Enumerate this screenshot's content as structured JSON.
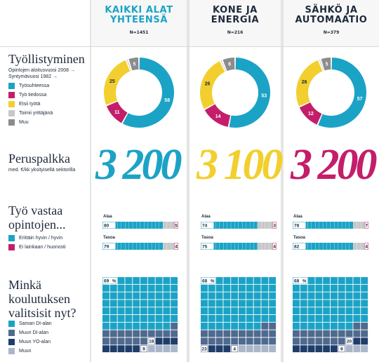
{
  "colors": {
    "blue": "#1ba3c6",
    "magenta": "#c41e6a",
    "yellow": "#f2cf2e",
    "gray": "#8c8c8c",
    "lightgray": "#c8c8c8",
    "slate": "#4f6a8e",
    "navy": "#1f3d6b",
    "lightslate": "#aab7c9"
  },
  "columns": [
    {
      "title": "KAIKKI ALAT\nYHTEENSÄ",
      "n": "N=1451",
      "title_color": "#1ba3c6"
    },
    {
      "title": "KONE JA\nENERGIA",
      "n": "N=216",
      "title_color": "#1e2a3a"
    },
    {
      "title": "SÄHKÖ JA\nAUTOMAATIO",
      "n": "N=379",
      "title_color": "#1e2a3a"
    }
  ],
  "sections": {
    "employment": {
      "title": "Työllistyminen",
      "subtitle": "Opintojen aloitusvuosi 2008 →\nSyntymävuosi 1982 →",
      "legend": [
        {
          "label": "Työsuhteessa",
          "color": "#1ba3c6"
        },
        {
          "label": "Työ tiedossa",
          "color": "#c41e6a"
        },
        {
          "label": "Etsii työtä",
          "color": "#f2cf2e"
        },
        {
          "label": "Toimii yrittäjänä",
          "color": "#c8c8c8"
        },
        {
          "label": "Muu",
          "color": "#8c8c8c"
        }
      ]
    },
    "salary": {
      "title": "Peruspalkka",
      "subtitle": "med. €/kk yksityisellä sektorilla",
      "values": [
        "3 200",
        "3 100",
        "3 200"
      ],
      "colors": [
        "#1ba3c6",
        "#f2cf2e",
        "#c41e6a"
      ]
    },
    "match": {
      "title": "Työ vastaa\nopintojen...",
      "legend": [
        {
          "label": "Erittäin hyvin / hyvin",
          "color": "#1ba3c6"
        },
        {
          "label": "Ei lainkaan / huonosti",
          "color": "#c41e6a"
        }
      ],
      "row_labels": [
        "Alaa",
        "Tasoa"
      ]
    },
    "choice": {
      "title": "Minkä\nkoulutuksen\nvalitsisit nyt?",
      "legend": [
        {
          "label": "Saman DI-alan",
          "color": "#1ba3c6"
        },
        {
          "label": "Muun DI-alan",
          "color": "#4f6a8e"
        },
        {
          "label": "Muun YO-alan",
          "color": "#1f3d6b"
        },
        {
          "label": "Muun",
          "color": "#aab7c9"
        }
      ]
    }
  },
  "chart_data": [
    {
      "type": "pie",
      "title": "Työllistyminen",
      "categories": [
        "Työsuhteessa",
        "Työ tiedossa",
        "Etsii työtä",
        "Toimii yrittäjänä",
        "Muu"
      ],
      "series": [
        {
          "name": "KAIKKI ALAT YHTEENSÄ",
          "values": [
            58,
            11,
            25,
            1,
            5
          ]
        },
        {
          "name": "KONE JA ENERGIA",
          "values": [
            53,
            14,
            26,
            1,
            6
          ]
        },
        {
          "name": "SÄHKÖ JA AUTOMAATIO",
          "values": [
            57,
            12,
            26,
            1,
            5
          ]
        }
      ],
      "labels_shown": [
        "58",
        "11",
        "25",
        "5",
        "53",
        "14",
        "26",
        "6",
        "57",
        "12",
        "26",
        "5"
      ]
    },
    {
      "type": "bar",
      "title": "Työ vastaa opintojen...",
      "categories": [
        "Alaa",
        "Tasoa"
      ],
      "series": [
        {
          "name": "KAIKKI ALAT YHTEENSÄ",
          "good": [
            80,
            79
          ],
          "bad": [
            5,
            4
          ]
        },
        {
          "name": "KONE JA ENERGIA",
          "good": [
            74,
            75
          ],
          "bad": [
            3,
            4
          ]
        },
        {
          "name": "SÄHKÖ JA AUTOMAATIO",
          "good": [
            78,
            82
          ],
          "bad": [
            7,
            4
          ]
        }
      ],
      "percent_sign": "%"
    },
    {
      "type": "table",
      "title": "Minkä koulutuksen valitsisit nyt?",
      "categories": [
        "Saman DI-alan",
        "Muun DI-alan",
        "Muun YO-alan",
        "Muun"
      ],
      "series": [
        {
          "name": "KAIKKI ALAT YHTEENSÄ",
          "values": [
            69,
            18,
            9,
            4
          ]
        },
        {
          "name": "KONE JA ENERGIA",
          "values": [
            68,
            23,
            4,
            5
          ]
        },
        {
          "name": "SÄHKÖ JA AUTOMAATIO",
          "values": [
            68,
            20,
            9,
            3
          ]
        }
      ],
      "labels_shown": [
        "69",
        "18",
        "9",
        "68",
        "23",
        "4",
        "68",
        "20",
        "9"
      ],
      "percent_sign": "%"
    }
  ]
}
